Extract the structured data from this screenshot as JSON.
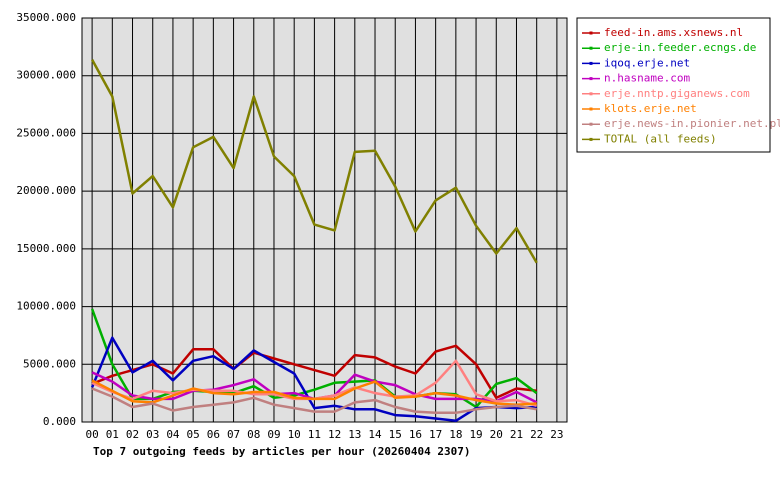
{
  "chart_data": {
    "type": "line",
    "title": "Top 7 outgoing feeds by articles per hour (20260404 2307)",
    "categories": [
      "00",
      "01",
      "02",
      "03",
      "04",
      "05",
      "06",
      "07",
      "08",
      "09",
      "10",
      "11",
      "12",
      "13",
      "14",
      "15",
      "16",
      "17",
      "18",
      "19",
      "20",
      "21",
      "22",
      "23"
    ],
    "ylim": [
      0,
      35000
    ],
    "yticks": [
      {
        "value": 0,
        "label": "0.000"
      },
      {
        "value": 5000,
        "label": "5000.000"
      },
      {
        "value": 10000,
        "label": "10000.000"
      },
      {
        "value": 15000,
        "label": "15000.000"
      },
      {
        "value": 20000,
        "label": "20000.000"
      },
      {
        "value": 25000,
        "label": "25000.000"
      },
      {
        "value": 30000,
        "label": "30000.000"
      },
      {
        "value": 35000,
        "label": "35000.000"
      }
    ],
    "grid": true,
    "legend": "right",
    "series": [
      {
        "name": "feed-in.ams.xsnews.nl",
        "color": "#c00000",
        "values": [
          3300,
          4000,
          4500,
          5000,
          4200,
          6300,
          6300,
          4600,
          6000,
          5500,
          5000,
          4500,
          4000,
          5800,
          5600,
          4800,
          4200,
          6100,
          6600,
          5000,
          2100,
          2900,
          2700,
          null
        ]
      },
      {
        "name": "erje-in.feeder.ecngs.de",
        "color": "#00b000",
        "values": [
          9800,
          5000,
          2000,
          2000,
          2600,
          2700,
          2600,
          2500,
          3100,
          2100,
          2300,
          2800,
          3400,
          3500,
          3600,
          2200,
          2200,
          2500,
          2400,
          1300,
          3300,
          3800,
          2500,
          null
        ]
      },
      {
        "name": "iqoq.erje.net",
        "color": "#0000c0",
        "values": [
          3000,
          7300,
          4300,
          5300,
          3600,
          5300,
          5700,
          4600,
          6200,
          5200,
          4200,
          1200,
          1400,
          1100,
          1100,
          600,
          500,
          300,
          100,
          1200,
          1300,
          1200,
          1300,
          null
        ]
      },
      {
        "name": "n.hasname.com",
        "color": "#c000c0",
        "values": [
          4300,
          3500,
          2300,
          2000,
          2000,
          2700,
          2800,
          3200,
          3700,
          2400,
          2500,
          2000,
          2300,
          4100,
          3500,
          3200,
          2400,
          2000,
          2000,
          2000,
          1800,
          2600,
          1700,
          null
        ]
      },
      {
        "name": "erje.nntp.giganews.com",
        "color": "#ff8080",
        "values": [
          3400,
          2600,
          2000,
          2700,
          2500,
          2800,
          2700,
          2700,
          2400,
          2400,
          2000,
          2000,
          2300,
          3000,
          2500,
          2200,
          2300,
          3400,
          5300,
          2400,
          1800,
          1900,
          1400,
          null
        ]
      },
      {
        "name": "klots.erje.net",
        "color": "#ff8000",
        "values": [
          3600,
          2700,
          1800,
          1700,
          2300,
          2900,
          2500,
          2400,
          2600,
          2600,
          2100,
          2000,
          2000,
          2900,
          3500,
          2100,
          2200,
          2500,
          2300,
          1900,
          1600,
          1500,
          1600,
          null
        ]
      },
      {
        "name": "erje.news-in.pionier.net.pl",
        "color": "#c08080",
        "values": [
          2900,
          2200,
          1300,
          1600,
          1000,
          1300,
          1500,
          1700,
          2100,
          1500,
          1200,
          900,
          900,
          1700,
          1900,
          1300,
          900,
          800,
          800,
          1100,
          1300,
          1400,
          1100,
          null
        ]
      },
      {
        "name": "TOTAL (all feeds)",
        "color": "#808000",
        "values": [
          31400,
          28200,
          19800,
          21300,
          18600,
          23800,
          24700,
          22000,
          28200,
          23000,
          21300,
          17100,
          16600,
          23400,
          23500,
          20400,
          16500,
          19200,
          20300,
          17000,
          14600,
          16800,
          13800,
          null
        ]
      }
    ]
  }
}
